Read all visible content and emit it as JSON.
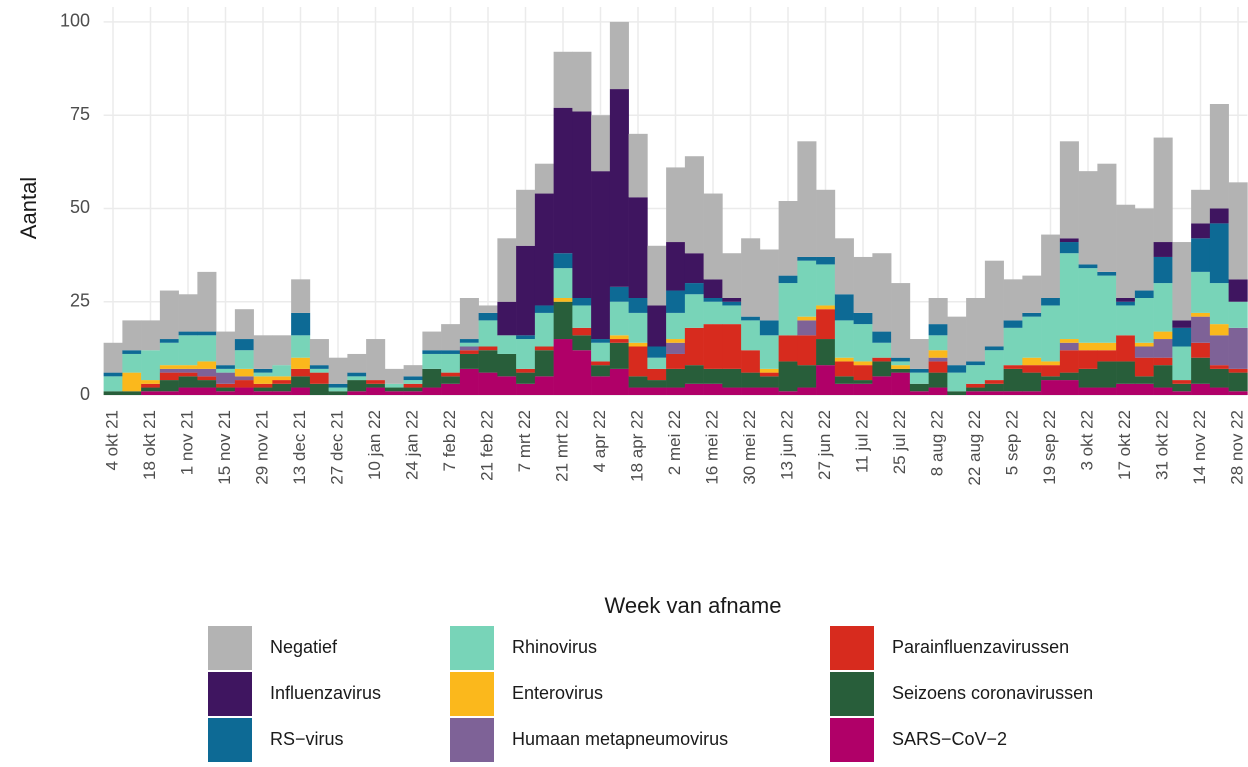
{
  "chart_data": {
    "type": "stacked-bar",
    "y_label": "Aantal",
    "x_label": "Week van afname",
    "categories": [
      "4 okt 21",
      null,
      "18 okt 21",
      null,
      "1 nov 21",
      null,
      "15 nov 21",
      null,
      "29 nov 21",
      null,
      "13 dec 21",
      null,
      "27 dec 21",
      null,
      "10 jan 22",
      null,
      "24 jan 22",
      null,
      "7 feb 22",
      null,
      "21 feb 22",
      null,
      "7 mrt 22",
      null,
      "21 mrt 22",
      null,
      "4 apr 22",
      null,
      "18 apr 22",
      null,
      "2 mei 22",
      null,
      "16 mei 22",
      null,
      "30 mei 22",
      null,
      "13 jun 22",
      null,
      "27 jun 22",
      null,
      "11 jul 22",
      null,
      "25 jul 22",
      null,
      "8 aug 22",
      null,
      "22 aug 22",
      null,
      "5 sep 22",
      null,
      "19 sep 22",
      null,
      "3 okt 22",
      null,
      "17 okt 22",
      null,
      "31 okt 22",
      null,
      "14 nov 22",
      null,
      "28 nov 22"
    ],
    "ylim": [
      0,
      104
    ],
    "yticks": [
      0,
      25,
      50,
      75,
      100
    ],
    "grid": true,
    "series": [
      {
        "name": "Negatief",
        "color": "#b3b3b3",
        "values": [
          8,
          8,
          8,
          13,
          10,
          16,
          9,
          8,
          9,
          8,
          9,
          7,
          7,
          5,
          11,
          4,
          3,
          5,
          7,
          11,
          2,
          17,
          15,
          8,
          15,
          16,
          15,
          18,
          17,
          16,
          20,
          26,
          23,
          12,
          21,
          19,
          20,
          31,
          18,
          15,
          15,
          21,
          20,
          8,
          7,
          13,
          17,
          23,
          11,
          10,
          17,
          26,
          25,
          29,
          25,
          22,
          28,
          21,
          9,
          28,
          26
        ]
      },
      {
        "name": "Influenzavirus",
        "color": "#3f1560",
        "values": [
          0,
          0,
          0,
          0,
          0,
          0,
          0,
          0,
          0,
          0,
          0,
          0,
          0,
          0,
          0,
          0,
          0,
          0,
          0,
          0,
          0,
          9,
          24,
          30,
          39,
          50,
          45,
          53,
          27,
          11,
          13,
          8,
          5,
          1,
          0,
          0,
          0,
          0,
          0,
          0,
          0,
          0,
          0,
          0,
          0,
          0,
          0,
          0,
          0,
          0,
          0,
          1,
          0,
          0,
          1,
          0,
          4,
          2,
          4,
          4,
          6
        ]
      },
      {
        "name": "RS−virus",
        "color": "#0d6a95",
        "values": [
          1,
          1,
          0,
          1,
          1,
          1,
          1,
          3,
          1,
          0,
          6,
          1,
          1,
          1,
          0,
          0,
          1,
          1,
          1,
          1,
          2,
          0,
          1,
          2,
          4,
          2,
          1,
          4,
          4,
          3,
          6,
          3,
          1,
          1,
          1,
          4,
          2,
          1,
          2,
          7,
          3,
          3,
          1,
          1,
          3,
          2,
          1,
          1,
          2,
          1,
          2,
          3,
          1,
          1,
          1,
          2,
          7,
          5,
          9,
          16,
          0
        ]
      },
      {
        "name": "Rhinovirus",
        "color": "#78d4b8",
        "values": [
          4,
          5,
          8,
          6,
          8,
          7,
          1,
          5,
          1,
          3,
          6,
          1,
          1,
          1,
          0,
          1,
          1,
          4,
          5,
          1,
          7,
          5,
          8,
          9,
          8,
          6,
          5,
          9,
          8,
          3,
          7,
          9,
          6,
          5,
          8,
          9,
          14,
          15,
          11,
          10,
          10,
          4,
          1,
          3,
          4,
          5,
          5,
          8,
          10,
          11,
          15,
          23,
          20,
          18,
          8,
          12,
          13,
          9,
          11,
          11,
          7
        ]
      },
      {
        "name": "Enterovirus",
        "color": "#fbb81c",
        "values": [
          0,
          5,
          1,
          1,
          1,
          2,
          0,
          2,
          2,
          1,
          3,
          0,
          0,
          0,
          0,
          0,
          0,
          0,
          0,
          0,
          0,
          0,
          0,
          0,
          1,
          0,
          0,
          1,
          1,
          0,
          1,
          0,
          0,
          0,
          0,
          1,
          0,
          1,
          1,
          1,
          1,
          0,
          1,
          0,
          2,
          0,
          0,
          0,
          0,
          2,
          1,
          1,
          2,
          2,
          0,
          1,
          2,
          0,
          1,
          3,
          0
        ]
      },
      {
        "name": "Humaan metapneumovirus",
        "color": "#7e6297",
        "values": [
          0,
          0,
          0,
          1,
          1,
          2,
          3,
          1,
          0,
          0,
          0,
          0,
          0,
          0,
          0,
          0,
          0,
          0,
          0,
          1,
          0,
          0,
          0,
          0,
          0,
          0,
          0,
          0,
          0,
          0,
          3,
          0,
          0,
          0,
          0,
          0,
          0,
          4,
          0,
          0,
          0,
          0,
          0,
          0,
          1,
          0,
          0,
          0,
          0,
          0,
          0,
          2,
          0,
          0,
          0,
          3,
          5,
          0,
          7,
          8,
          11
        ]
      },
      {
        "name": "Parainfluenzavirussen",
        "color": "#d72b1e",
        "values": [
          0,
          0,
          1,
          2,
          1,
          1,
          1,
          2,
          1,
          1,
          2,
          3,
          0,
          0,
          1,
          0,
          1,
          0,
          1,
          1,
          1,
          0,
          1,
          1,
          0,
          2,
          1,
          1,
          8,
          3,
          4,
          10,
          12,
          12,
          6,
          1,
          7,
          8,
          8,
          4,
          4,
          1,
          0,
          0,
          3,
          0,
          1,
          1,
          1,
          2,
          3,
          6,
          5,
          3,
          7,
          5,
          2,
          1,
          4,
          1,
          1
        ]
      },
      {
        "name": "Seizoens coronavirussen",
        "color": "#285e3a",
        "values": [
          1,
          1,
          1,
          3,
          3,
          2,
          1,
          0,
          1,
          2,
          3,
          3,
          1,
          3,
          1,
          1,
          1,
          5,
          2,
          4,
          6,
          6,
          3,
          7,
          10,
          4,
          3,
          7,
          3,
          2,
          5,
          5,
          4,
          5,
          4,
          3,
          8,
          6,
          7,
          2,
          1,
          4,
          1,
          2,
          4,
          1,
          1,
          2,
          6,
          5,
          1,
          2,
          5,
          7,
          6,
          2,
          6,
          2,
          7,
          5,
          5
        ]
      },
      {
        "name": "SARS−CoV−2",
        "color": "#b00068",
        "values": [
          0,
          0,
          1,
          1,
          2,
          2,
          1,
          2,
          1,
          1,
          2,
          0,
          0,
          1,
          2,
          1,
          1,
          2,
          3,
          7,
          6,
          5,
          3,
          5,
          15,
          12,
          5,
          7,
          2,
          2,
          2,
          3,
          3,
          2,
          2,
          2,
          1,
          2,
          8,
          3,
          3,
          5,
          6,
          1,
          2,
          0,
          1,
          1,
          1,
          1,
          4,
          4,
          2,
          2,
          3,
          3,
          2,
          1,
          3,
          2,
          1
        ]
      }
    ]
  }
}
